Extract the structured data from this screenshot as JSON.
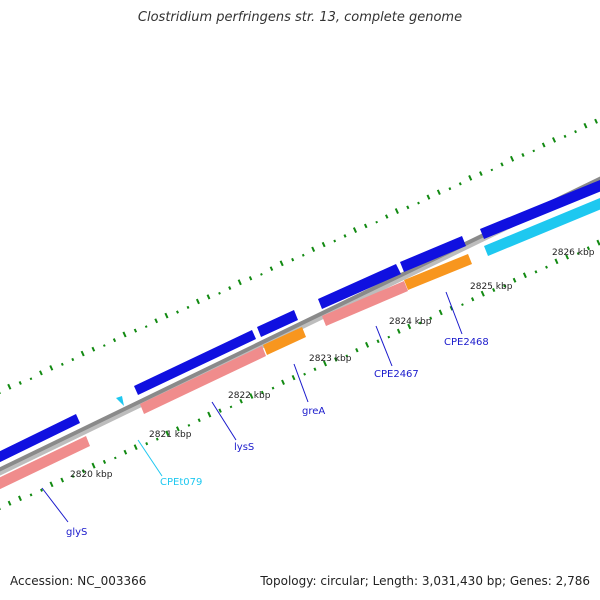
{
  "title": "Clostridium perfringens str. 13, complete genome",
  "accession_text": "Accession: NC_003366",
  "summary_text": "Topology: circular; Length: 3,031,430 bp; Genes: 2,786",
  "colors": {
    "backbone": "#8a8a8a",
    "cds_forward": "#1010e0",
    "gene": "#f08c8c",
    "gene_orange": "#f8961e",
    "trna": "#1ec8f0",
    "gc_ticks": "#128a12",
    "label_blue": "#1a1acc",
    "label_cyan": "#1ec8f0"
  },
  "ruler": {
    "ticks": [
      "2820 kbp",
      "2821 kbp",
      "2822 kbp",
      "2823 kbp",
      "2824 kbp",
      "2825 kbp",
      "2826 kbp"
    ]
  },
  "features": [
    {
      "name": "glyS",
      "type": "gene",
      "color": "label_blue"
    },
    {
      "name": "CPEt079",
      "type": "tRNA",
      "color": "label_cyan"
    },
    {
      "name": "lysS",
      "type": "gene",
      "color": "label_blue"
    },
    {
      "name": "greA",
      "type": "gene",
      "color": "label_blue"
    },
    {
      "name": "CPE2467",
      "type": "gene",
      "color": "label_blue"
    },
    {
      "name": "CPE2468",
      "type": "gene",
      "color": "label_blue"
    }
  ]
}
